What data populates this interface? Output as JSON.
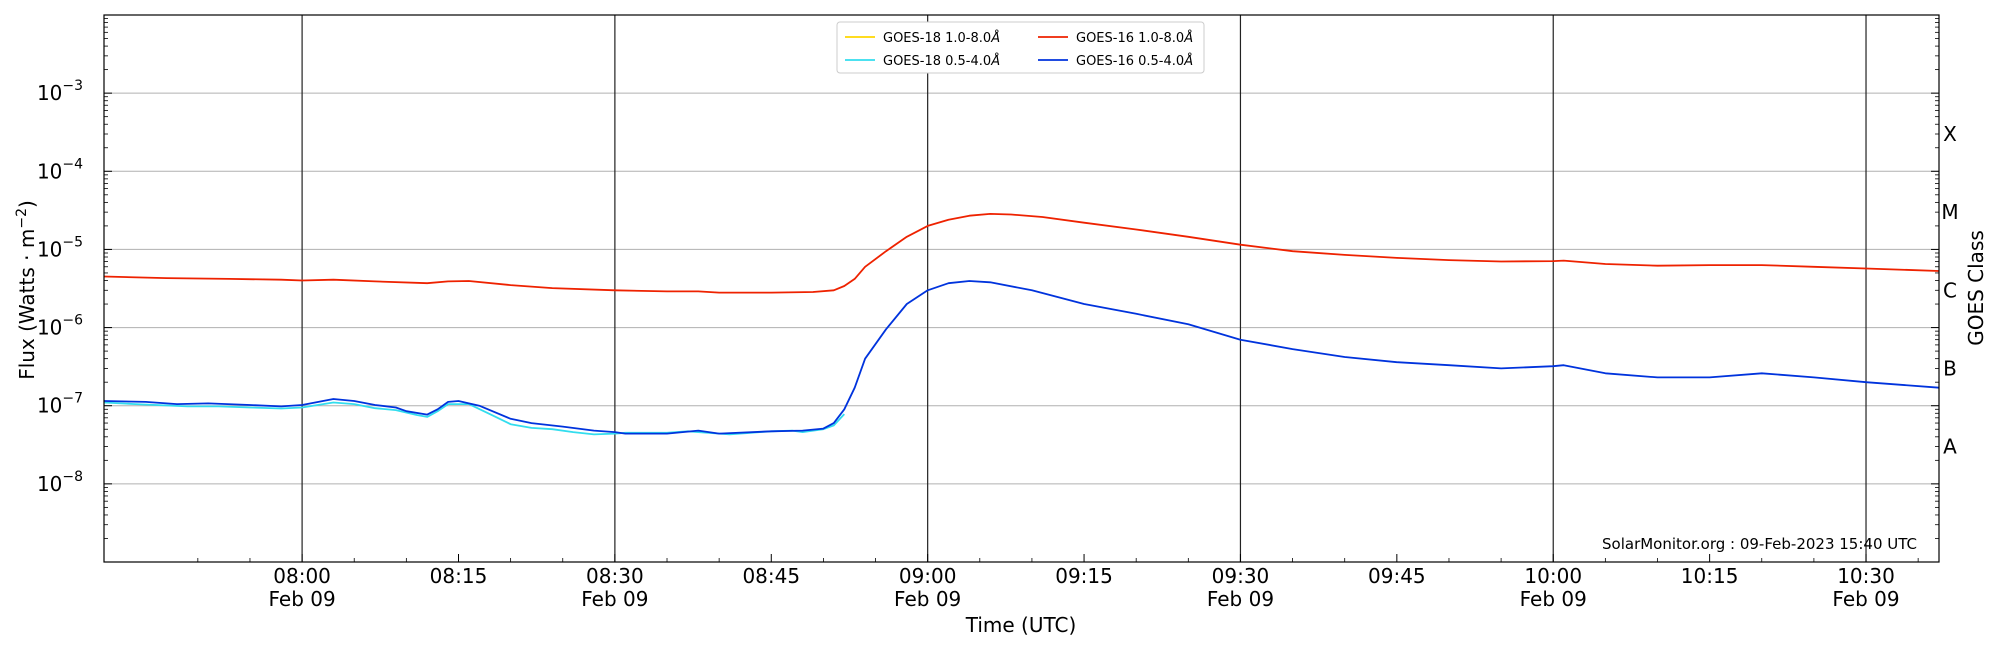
{
  "chart_data": {
    "type": "line",
    "xlabel": "Time (UTC)",
    "ylabel": "Flux (Watts · m",
    "ylabel_exp": "−2",
    "ylabel_close": ")",
    "right_label": "GOES Class",
    "yscale": "log",
    "ylim": [
      1e-09,
      0.01
    ],
    "xlim": [
      "07:41",
      "10:37"
    ],
    "grid": "horizontal at decades; vertical at half hours",
    "legend_position": "top-center",
    "credit": "SolarMonitor.org : 09-Feb-2023 15:40 UTC",
    "y_ticks": [
      {
        "value": 0.001,
        "base": "10",
        "exp": "−3"
      },
      {
        "value": 0.0001,
        "base": "10",
        "exp": "−4"
      },
      {
        "value": 1e-05,
        "base": "10",
        "exp": "−5"
      },
      {
        "value": 1e-06,
        "base": "10",
        "exp": "−6"
      },
      {
        "value": 1e-07,
        "base": "10",
        "exp": "−7"
      },
      {
        "value": 1e-08,
        "base": "10",
        "exp": "−8"
      }
    ],
    "classes": [
      {
        "label": "X",
        "value": 0.0003
      },
      {
        "label": "M",
        "value": 3e-05
      },
      {
        "label": "C",
        "value": 3e-06
      },
      {
        "label": "B",
        "value": 3e-07
      },
      {
        "label": "A",
        "value": 3e-08
      }
    ],
    "x_ticks": [
      {
        "time": "08:00",
        "label": "08:00",
        "date": "Feb 09"
      },
      {
        "time": "08:15",
        "label": "08:15",
        "date": ""
      },
      {
        "time": "08:30",
        "label": "08:30",
        "date": "Feb 09"
      },
      {
        "time": "08:45",
        "label": "08:45",
        "date": ""
      },
      {
        "time": "09:00",
        "label": "09:00",
        "date": "Feb 09"
      },
      {
        "time": "09:15",
        "label": "09:15",
        "date": ""
      },
      {
        "time": "09:30",
        "label": "09:30",
        "date": "Feb 09"
      },
      {
        "time": "09:45",
        "label": "09:45",
        "date": ""
      },
      {
        "time": "10:00",
        "label": "10:00",
        "date": "Feb 09"
      },
      {
        "time": "10:15",
        "label": "10:15",
        "date": ""
      },
      {
        "time": "10:30",
        "label": "10:30",
        "date": "Feb 09"
      }
    ],
    "vlines": [
      "08:00",
      "08:30",
      "09:00",
      "09:30",
      "10:00",
      "10:30"
    ],
    "series": [
      {
        "name": "GOES-18 1.0-8.0",
        "unit": "Å",
        "color": "#FFD700",
        "points": []
      },
      {
        "name": "GOES-18 0.5-4.0",
        "unit": "Å",
        "color": "#33DDEE",
        "points": [
          [
            "07:41",
            1.1e-07
          ],
          [
            "07:44",
            1.05e-07
          ],
          [
            "07:46",
            1.02e-07
          ],
          [
            "07:49",
            9.8e-08
          ],
          [
            "07:52",
            9.8e-08
          ],
          [
            "07:55",
            9.5e-08
          ],
          [
            "07:58",
            9.2e-08
          ],
          [
            "08:00",
            9.5e-08
          ],
          [
            "08:03",
            1.1e-07
          ],
          [
            "08:05",
            1.05e-07
          ],
          [
            "08:07",
            9.3e-08
          ],
          [
            "08:09",
            8.8e-08
          ],
          [
            "08:11",
            7.6e-08
          ],
          [
            "08:12",
            7.2e-08
          ],
          [
            "08:13",
            8.5e-08
          ],
          [
            "08:14",
            1.05e-07
          ],
          [
            "08:16",
            1.05e-07
          ],
          [
            "08:18",
            7.8e-08
          ],
          [
            "08:20",
            5.8e-08
          ],
          [
            "08:22",
            5.2e-08
          ],
          [
            "08:24",
            5e-08
          ],
          [
            "08:26",
            4.6e-08
          ],
          [
            "08:28",
            4.3e-08
          ],
          [
            "08:30",
            4.4e-08
          ],
          [
            "08:31",
            4.5e-08
          ],
          [
            "08:35",
            4.5e-08
          ],
          [
            "08:37",
            4.7e-08
          ],
          [
            "08:39",
            4.5e-08
          ],
          [
            "08:41",
            4.3e-08
          ],
          [
            "08:43",
            4.5e-08
          ],
          [
            "08:45",
            4.7e-08
          ],
          [
            "08:47",
            4.8e-08
          ],
          [
            "08:48",
            4.6e-08
          ],
          [
            "08:50",
            5e-08
          ],
          [
            "08:51",
            5.6e-08
          ],
          [
            "08:52",
            7.8e-08
          ]
        ]
      },
      {
        "name": "GOES-16 1.0-8.0",
        "unit": "Å",
        "color": "#EE2200",
        "points": [
          [
            "07:41",
            4.5e-06
          ],
          [
            "07:47",
            4.3e-06
          ],
          [
            "07:53",
            4.2e-06
          ],
          [
            "07:58",
            4.1e-06
          ],
          [
            "08:00",
            4e-06
          ],
          [
            "08:03",
            4.1e-06
          ],
          [
            "08:07",
            3.9e-06
          ],
          [
            "08:12",
            3.7e-06
          ],
          [
            "08:14",
            3.9e-06
          ],
          [
            "08:16",
            3.95e-06
          ],
          [
            "08:20",
            3.5e-06
          ],
          [
            "08:24",
            3.2e-06
          ],
          [
            "08:30",
            3e-06
          ],
          [
            "08:35",
            2.9e-06
          ],
          [
            "08:38",
            2.9e-06
          ],
          [
            "08:40",
            2.8e-06
          ],
          [
            "08:45",
            2.8e-06
          ],
          [
            "08:49",
            2.85e-06
          ],
          [
            "08:51",
            3e-06
          ],
          [
            "08:52",
            3.4e-06
          ],
          [
            "08:53",
            4.2e-06
          ],
          [
            "08:54",
            6e-06
          ],
          [
            "08:56",
            9.5e-06
          ],
          [
            "08:58",
            1.45e-05
          ],
          [
            "09:00",
            2e-05
          ],
          [
            "09:02",
            2.4e-05
          ],
          [
            "09:04",
            2.7e-05
          ],
          [
            "09:06",
            2.85e-05
          ],
          [
            "09:08",
            2.8e-05
          ],
          [
            "09:11",
            2.6e-05
          ],
          [
            "09:15",
            2.2e-05
          ],
          [
            "09:20",
            1.8e-05
          ],
          [
            "09:25",
            1.45e-05
          ],
          [
            "09:30",
            1.15e-05
          ],
          [
            "09:35",
            9.5e-06
          ],
          [
            "09:40",
            8.5e-06
          ],
          [
            "09:45",
            7.8e-06
          ],
          [
            "09:50",
            7.3e-06
          ],
          [
            "09:55",
            7e-06
          ],
          [
            "10:00",
            7.1e-06
          ],
          [
            "10:01",
            7.2e-06
          ],
          [
            "10:05",
            6.5e-06
          ],
          [
            "10:10",
            6.2e-06
          ],
          [
            "10:15",
            6.3e-06
          ],
          [
            "10:20",
            6.3e-06
          ],
          [
            "10:25",
            6e-06
          ],
          [
            "10:30",
            5.7e-06
          ],
          [
            "10:37",
            5.3e-06
          ]
        ]
      },
      {
        "name": "GOES-16 0.5-4.0",
        "unit": "Å",
        "color": "#0033DD",
        "points": [
          [
            "07:41",
            1.15e-07
          ],
          [
            "07:45",
            1.12e-07
          ],
          [
            "07:48",
            1.05e-07
          ],
          [
            "07:51",
            1.07e-07
          ],
          [
            "07:55",
            1.02e-07
          ],
          [
            "07:58",
            9.8e-08
          ],
          [
            "08:00",
            1.02e-07
          ],
          [
            "08:03",
            1.22e-07
          ],
          [
            "08:05",
            1.15e-07
          ],
          [
            "08:07",
            1.02e-07
          ],
          [
            "08:09",
            9.5e-08
          ],
          [
            "08:10",
            8.5e-08
          ],
          [
            "08:12",
            7.7e-08
          ],
          [
            "08:13",
            9e-08
          ],
          [
            "08:14",
            1.12e-07
          ],
          [
            "08:15",
            1.15e-07
          ],
          [
            "08:17",
            1e-07
          ],
          [
            "08:20",
            6.8e-08
          ],
          [
            "08:22",
            6e-08
          ],
          [
            "08:25",
            5.4e-08
          ],
          [
            "08:28",
            4.8e-08
          ],
          [
            "08:30",
            4.6e-08
          ],
          [
            "08:31",
            4.4e-08
          ],
          [
            "08:35",
            4.4e-08
          ],
          [
            "08:38",
            4.8e-08
          ],
          [
            "08:40",
            4.4e-08
          ],
          [
            "08:45",
            4.7e-08
          ],
          [
            "08:48",
            4.8e-08
          ],
          [
            "08:50",
            5.1e-08
          ],
          [
            "08:51",
            6e-08
          ],
          [
            "08:52",
            9e-08
          ],
          [
            "08:53",
            1.7e-07
          ],
          [
            "08:54",
            4e-07
          ],
          [
            "08:56",
            9.5e-07
          ],
          [
            "08:58",
            2e-06
          ],
          [
            "09:00",
            3e-06
          ],
          [
            "09:02",
            3.7e-06
          ],
          [
            "09:04",
            3.95e-06
          ],
          [
            "09:06",
            3.8e-06
          ],
          [
            "09:10",
            3e-06
          ],
          [
            "09:15",
            2e-06
          ],
          [
            "09:20",
            1.5e-06
          ],
          [
            "09:25",
            1.1e-06
          ],
          [
            "09:30",
            7e-07
          ],
          [
            "09:35",
            5.3e-07
          ],
          [
            "09:40",
            4.2e-07
          ],
          [
            "09:45",
            3.6e-07
          ],
          [
            "09:50",
            3.3e-07
          ],
          [
            "09:55",
            3e-07
          ],
          [
            "10:00",
            3.2e-07
          ],
          [
            "10:01",
            3.3e-07
          ],
          [
            "10:05",
            2.6e-07
          ],
          [
            "10:10",
            2.3e-07
          ],
          [
            "10:15",
            2.3e-07
          ],
          [
            "10:20",
            2.6e-07
          ],
          [
            "10:25",
            2.3e-07
          ],
          [
            "10:30",
            2e-07
          ],
          [
            "10:37",
            1.7e-07
          ]
        ]
      }
    ]
  }
}
